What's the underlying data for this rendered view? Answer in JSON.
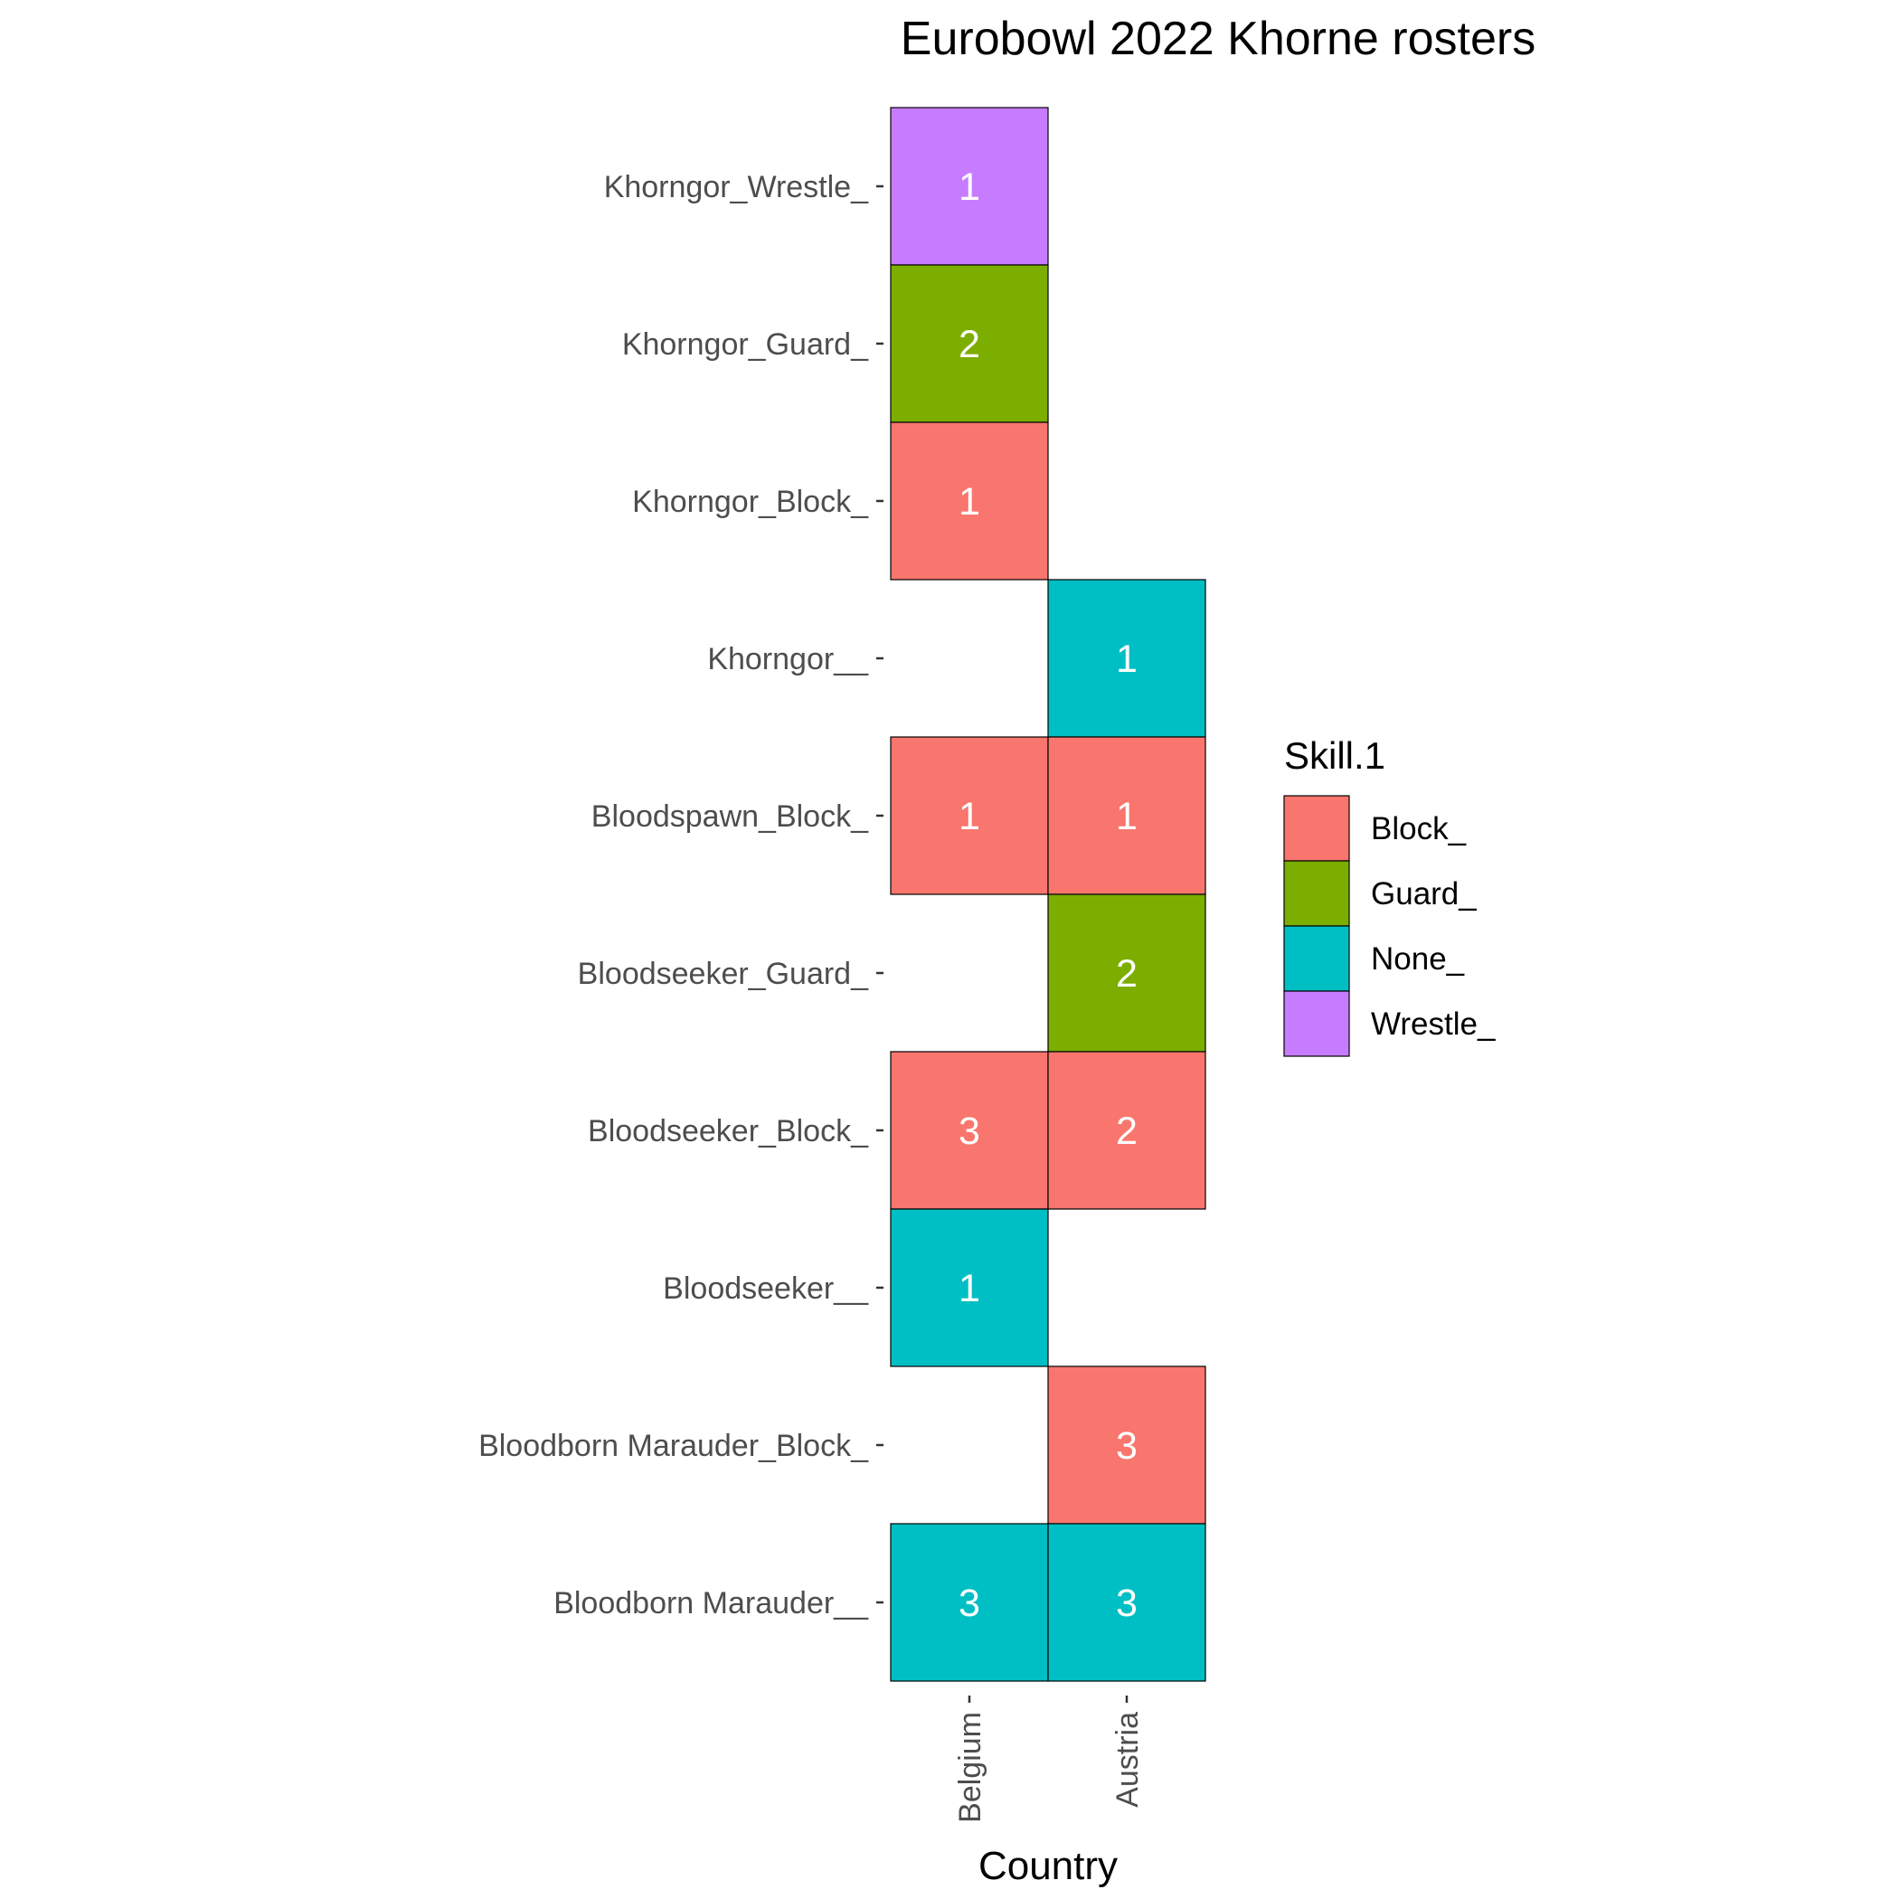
{
  "chart_data": {
    "type": "heatmap",
    "title": "Eurobowl 2022 Khorne rosters",
    "xlabel": "Country",
    "ylabel": "",
    "x_categories": [
      "Belgium",
      "Austria"
    ],
    "y_categories": [
      "Khorngor_Wrestle_",
      "Khorngor_Guard_",
      "Khorngor_Block_",
      "Khorngor__",
      "Bloodspawn_Block_",
      "Bloodseeker_Guard_",
      "Bloodseeker_Block_",
      "Bloodseeker__",
      "Bloodborn Marauder_Block_",
      "Bloodborn Marauder__"
    ],
    "cells": [
      {
        "x": "Belgium",
        "y": "Khorngor_Wrestle_",
        "value": 1,
        "skill": "Wrestle_"
      },
      {
        "x": "Belgium",
        "y": "Khorngor_Guard_",
        "value": 2,
        "skill": "Guard_"
      },
      {
        "x": "Belgium",
        "y": "Khorngor_Block_",
        "value": 1,
        "skill": "Block_"
      },
      {
        "x": "Austria",
        "y": "Khorngor__",
        "value": 1,
        "skill": "None_"
      },
      {
        "x": "Belgium",
        "y": "Bloodspawn_Block_",
        "value": 1,
        "skill": "Block_"
      },
      {
        "x": "Austria",
        "y": "Bloodspawn_Block_",
        "value": 1,
        "skill": "Block_"
      },
      {
        "x": "Austria",
        "y": "Bloodseeker_Guard_",
        "value": 2,
        "skill": "Guard_"
      },
      {
        "x": "Belgium",
        "y": "Bloodseeker_Block_",
        "value": 3,
        "skill": "Block_"
      },
      {
        "x": "Austria",
        "y": "Bloodseeker_Block_",
        "value": 2,
        "skill": "Block_"
      },
      {
        "x": "Belgium",
        "y": "Bloodseeker__",
        "value": 1,
        "skill": "None_"
      },
      {
        "x": "Austria",
        "y": "Bloodborn Marauder_Block_",
        "value": 3,
        "skill": "Block_"
      },
      {
        "x": "Belgium",
        "y": "Bloodborn Marauder__",
        "value": 3,
        "skill": "None_"
      },
      {
        "x": "Austria",
        "y": "Bloodborn Marauder__",
        "value": 3,
        "skill": "None_"
      }
    ],
    "legend": {
      "title": "Skill.1",
      "position": "right",
      "entries": [
        {
          "label": "Block_",
          "color": "#F8766D"
        },
        {
          "label": "Guard_",
          "color": "#7CAE00"
        },
        {
          "label": "None_",
          "color": "#00BFC4"
        },
        {
          "label": "Wrestle_",
          "color": "#C77CFF"
        }
      ]
    },
    "grid": false
  }
}
